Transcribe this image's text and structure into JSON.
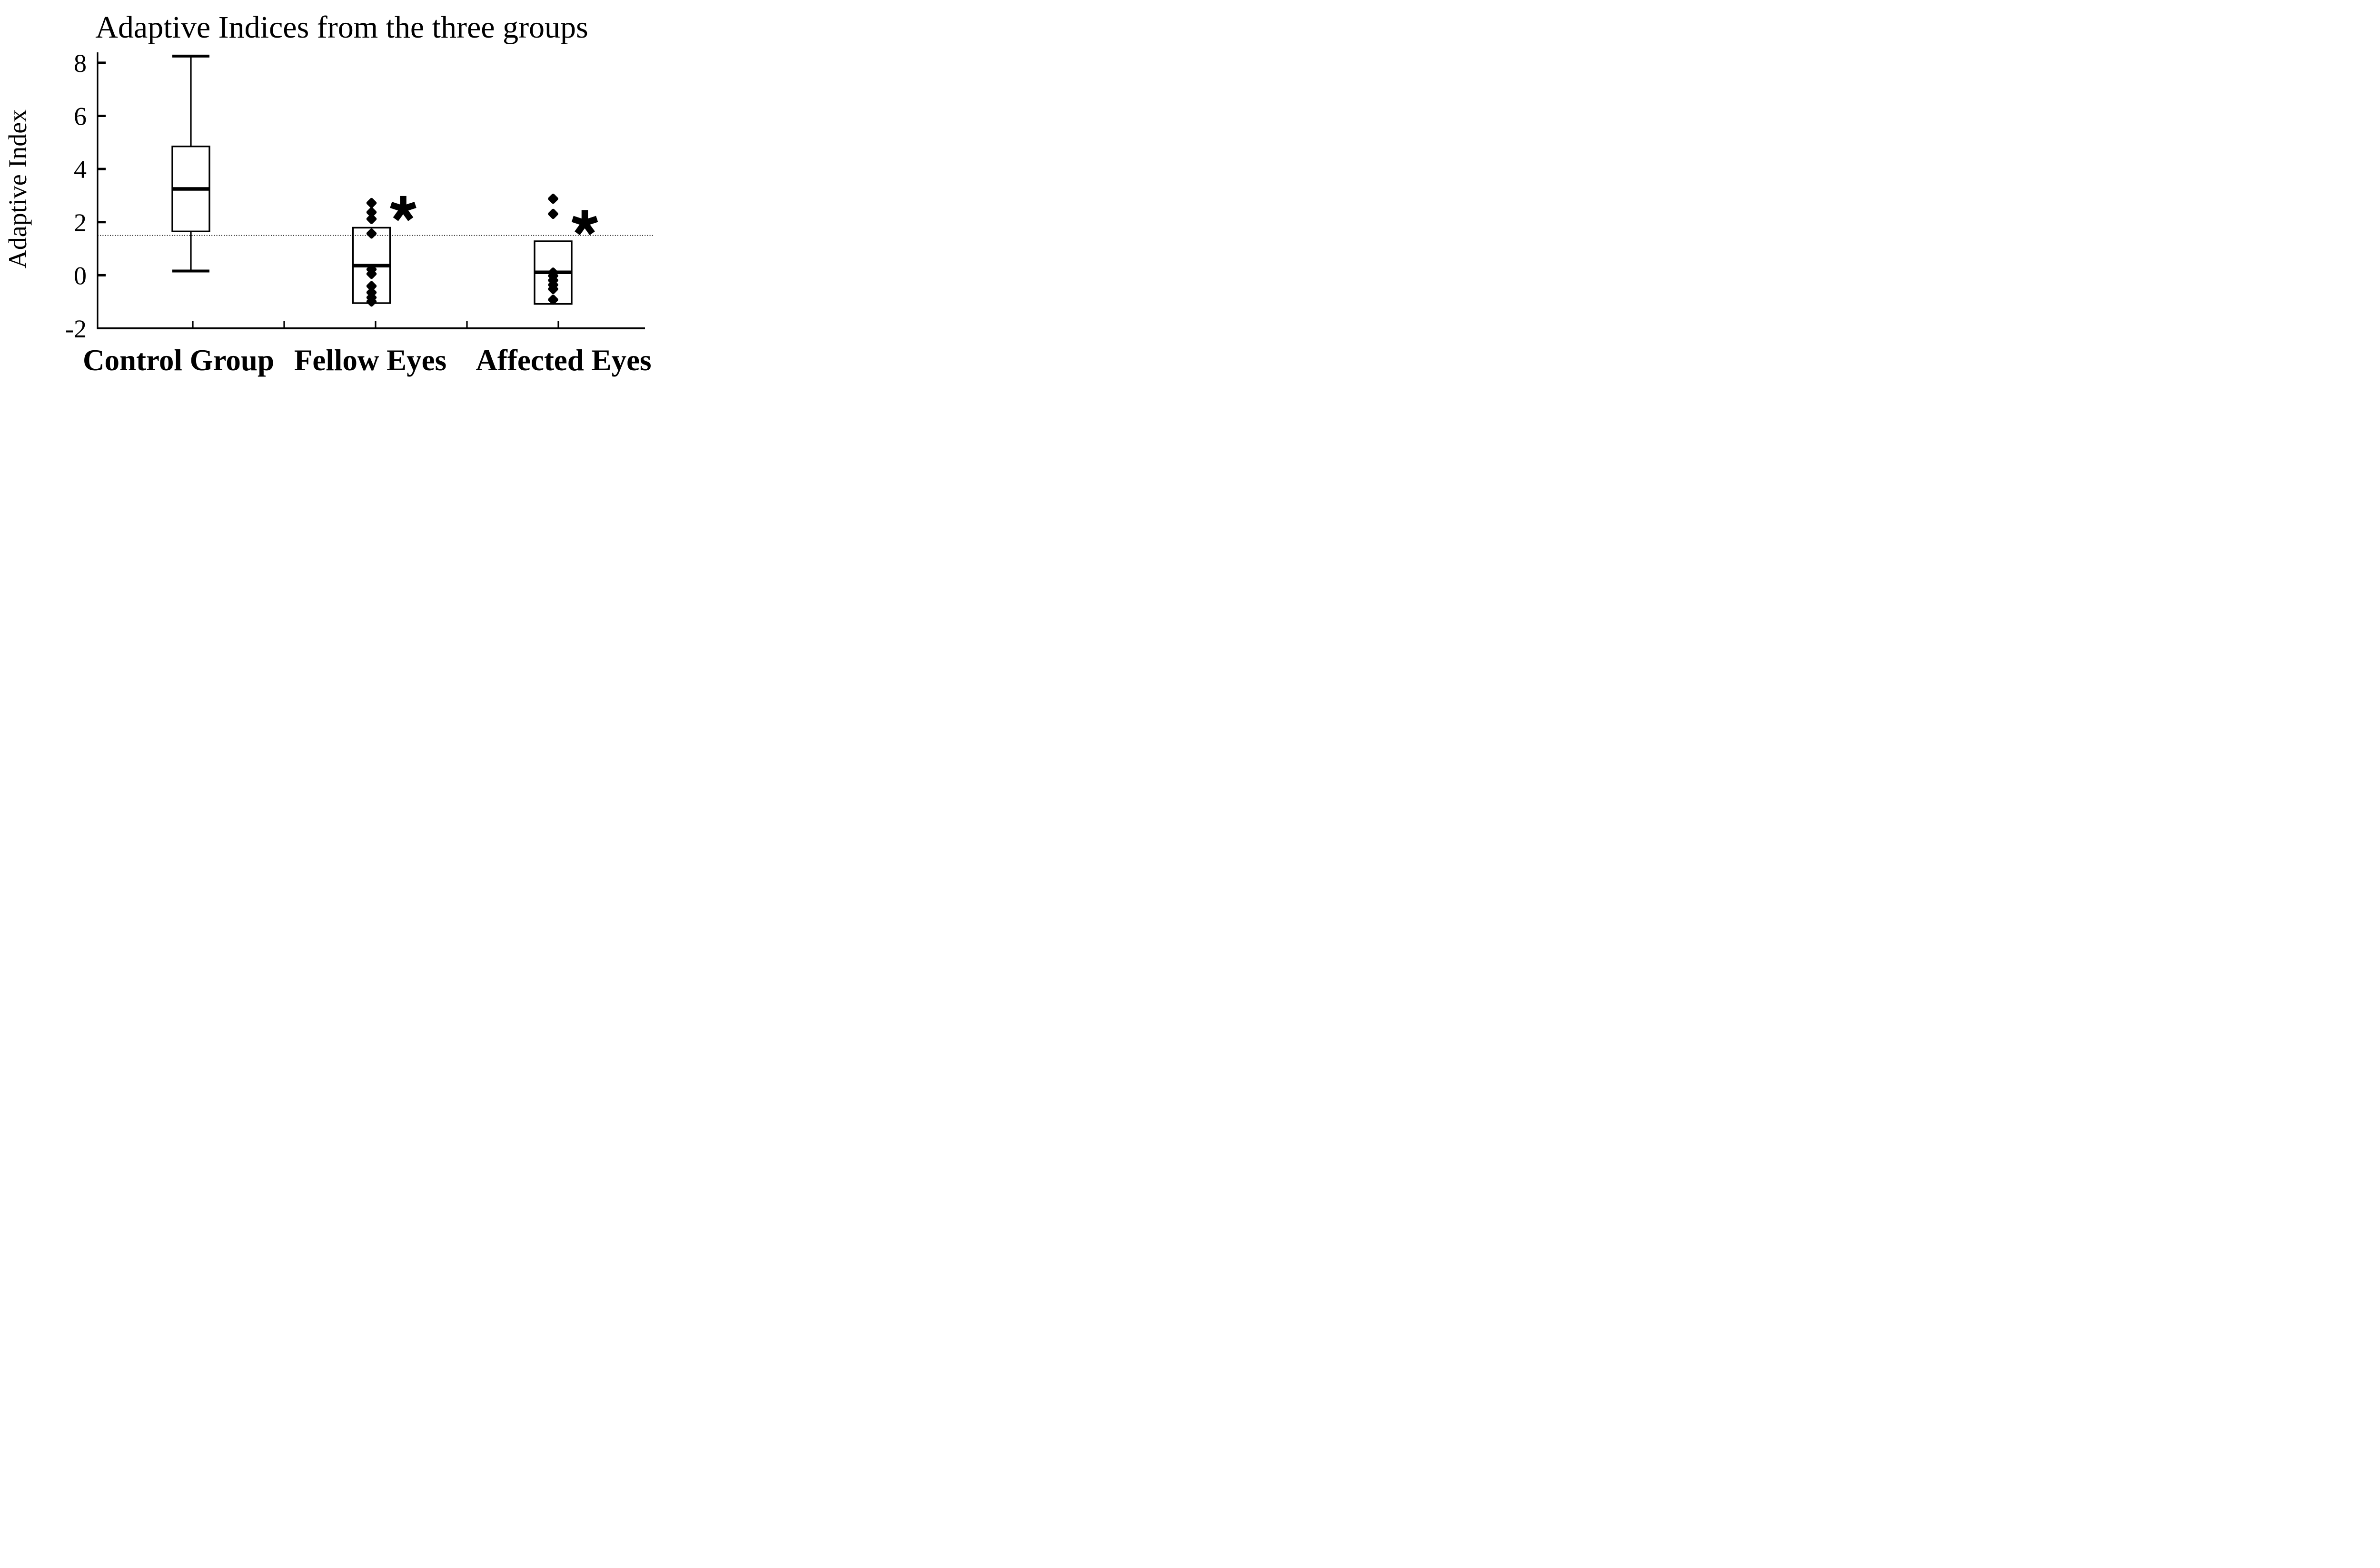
{
  "title": "Adaptive Indices from the three groups",
  "y_axis": {
    "label": "Adaptive Index",
    "tick_labels": [
      "8",
      "6",
      "4",
      "2",
      "0",
      "-2"
    ],
    "tick_values": [
      8,
      6,
      4,
      2,
      0,
      -2
    ],
    "min": -2,
    "max": 8.55
  },
  "x_axis": {
    "labels": [
      "Control Group",
      "Fellow Eyes",
      "Affected Eyes"
    ],
    "minor_tick_count": 5
  },
  "reference_line": {
    "value": 1.5,
    "style": "dotted",
    "color": "#000000"
  },
  "marker": {
    "shape": "diamond",
    "color": "#000000"
  },
  "significance_symbol": "*",
  "colors": {
    "foreground": "#000000",
    "background": "#ffffff"
  },
  "chart_data": {
    "type": "box",
    "title": "Adaptive Indices from the three groups",
    "ylabel": "Adaptive Index",
    "ylim": [
      -2,
      8.55
    ],
    "grid": false,
    "legend": "none",
    "reference_line_y": 1.5,
    "categories": [
      "Control Group",
      "Fellow Eyes",
      "Affected Eyes"
    ],
    "series": [
      {
        "name": "Control Group",
        "whisker_low": 0.16,
        "q1": 1.65,
        "median": 3.25,
        "q3": 4.85,
        "whisker_high": 8.25,
        "points": [],
        "significant": false,
        "asterisk_y": null
      },
      {
        "name": "Fellow Eyes",
        "whisker_low": null,
        "q1": -1.05,
        "median": 0.36,
        "q3": 1.79,
        "whisker_high": null,
        "points": [
          2.72,
          2.37,
          2.12,
          1.57,
          0.22,
          0.05,
          -0.41,
          -0.65,
          -0.84,
          -0.99
        ],
        "significant": true,
        "asterisk_y": 2.5
      },
      {
        "name": "Affected Eyes",
        "whisker_low": null,
        "q1": -1.08,
        "median": 0.11,
        "q3": 1.28,
        "whisker_high": null,
        "points": [
          2.88,
          2.31,
          0.1,
          -0.02,
          -0.19,
          -0.36,
          -0.52,
          -0.92
        ],
        "significant": true,
        "asterisk_y": 1.97
      }
    ]
  }
}
